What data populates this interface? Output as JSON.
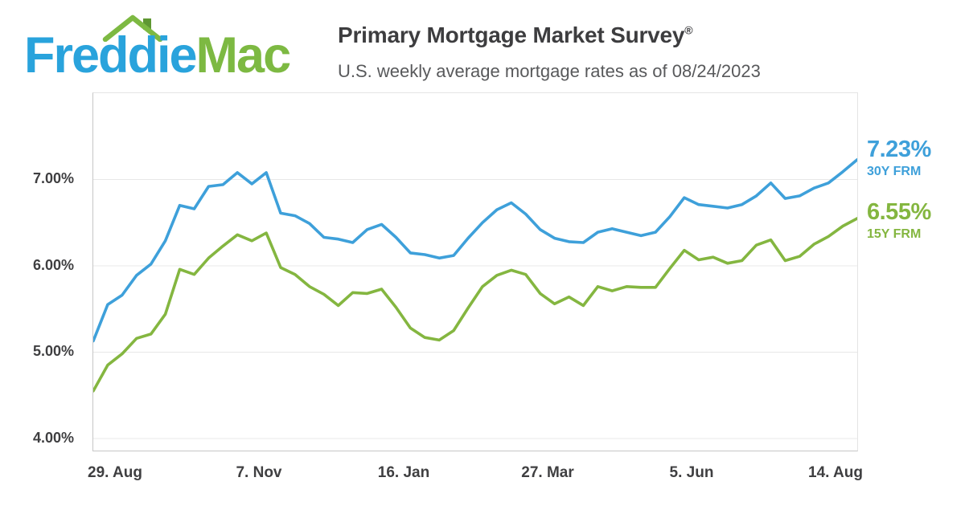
{
  "logo": {
    "text_blue": "Freddie",
    "text_green": "Mac",
    "blue_hex": "#29A3DC",
    "green_hex": "#7DB942",
    "chimney_hex": "#5E9732"
  },
  "header": {
    "title": "Primary Mortgage Market Survey",
    "trademark": "®",
    "subtitle": "U.S. weekly average mortgage rates as of 08/24/2023"
  },
  "callouts": {
    "rate_30y": "7.23%",
    "label_30y": "30Y FRM",
    "rate_15y": "6.55%",
    "label_15y": "15Y FRM"
  },
  "chart_data": {
    "type": "line",
    "title": "Primary Mortgage Market Survey",
    "subtitle": "U.S. weekly average mortgage rates as of 08/24/2023",
    "xlabel": "",
    "ylabel": "",
    "grid": "horizontal",
    "grid_color": "#e8e8e8",
    "legend_position": "right-annotations",
    "ylim": [
      3.86,
      8.0
    ],
    "point_interval_days": 7,
    "span_days": 371,
    "yticks": [
      {
        "label": "7.00%",
        "value": 7.0
      },
      {
        "label": "6.00%",
        "value": 6.0
      },
      {
        "label": "5.00%",
        "value": 5.0
      },
      {
        "label": "4.00%",
        "value": 4.0
      }
    ],
    "xticks": [
      {
        "label": "29. Aug",
        "day": 11
      },
      {
        "label": "7. Nov",
        "day": 81
      },
      {
        "label": "16. Jan",
        "day": 151
      },
      {
        "label": "27. Mar",
        "day": 221
      },
      {
        "label": "5. Jun",
        "day": 291
      },
      {
        "label": "14. Aug",
        "day": 361
      }
    ],
    "series": [
      {
        "name": "30Y FRM",
        "final_label": "7.23%",
        "color": "#3EA0DA",
        "values": [
          5.13,
          5.55,
          5.66,
          5.89,
          6.02,
          6.29,
          6.7,
          6.66,
          6.92,
          6.94,
          7.08,
          6.95,
          7.08,
          6.61,
          6.58,
          6.49,
          6.33,
          6.31,
          6.27,
          6.42,
          6.48,
          6.33,
          6.15,
          6.13,
          6.09,
          6.12,
          6.32,
          6.5,
          6.65,
          6.73,
          6.6,
          6.42,
          6.32,
          6.28,
          6.27,
          6.39,
          6.43,
          6.39,
          6.35,
          6.39,
          6.57,
          6.79,
          6.71,
          6.69,
          6.67,
          6.71,
          6.81,
          6.96,
          6.78,
          6.81,
          6.9,
          6.96,
          7.09,
          7.23
        ]
      },
      {
        "name": "15Y FRM",
        "final_label": "6.55%",
        "color": "#84B640",
        "values": [
          4.55,
          4.85,
          4.98,
          5.16,
          5.21,
          5.44,
          5.96,
          5.9,
          6.09,
          6.23,
          6.36,
          6.29,
          6.38,
          5.98,
          5.9,
          5.76,
          5.67,
          5.54,
          5.69,
          5.68,
          5.73,
          5.52,
          5.28,
          5.17,
          5.14,
          5.25,
          5.51,
          5.76,
          5.89,
          5.95,
          5.9,
          5.68,
          5.56,
          5.64,
          5.54,
          5.76,
          5.71,
          5.76,
          5.75,
          5.75,
          5.97,
          6.18,
          6.07,
          6.1,
          6.03,
          6.06,
          6.24,
          6.3,
          6.06,
          6.11,
          6.25,
          6.34,
          6.46,
          6.55
        ]
      }
    ]
  }
}
